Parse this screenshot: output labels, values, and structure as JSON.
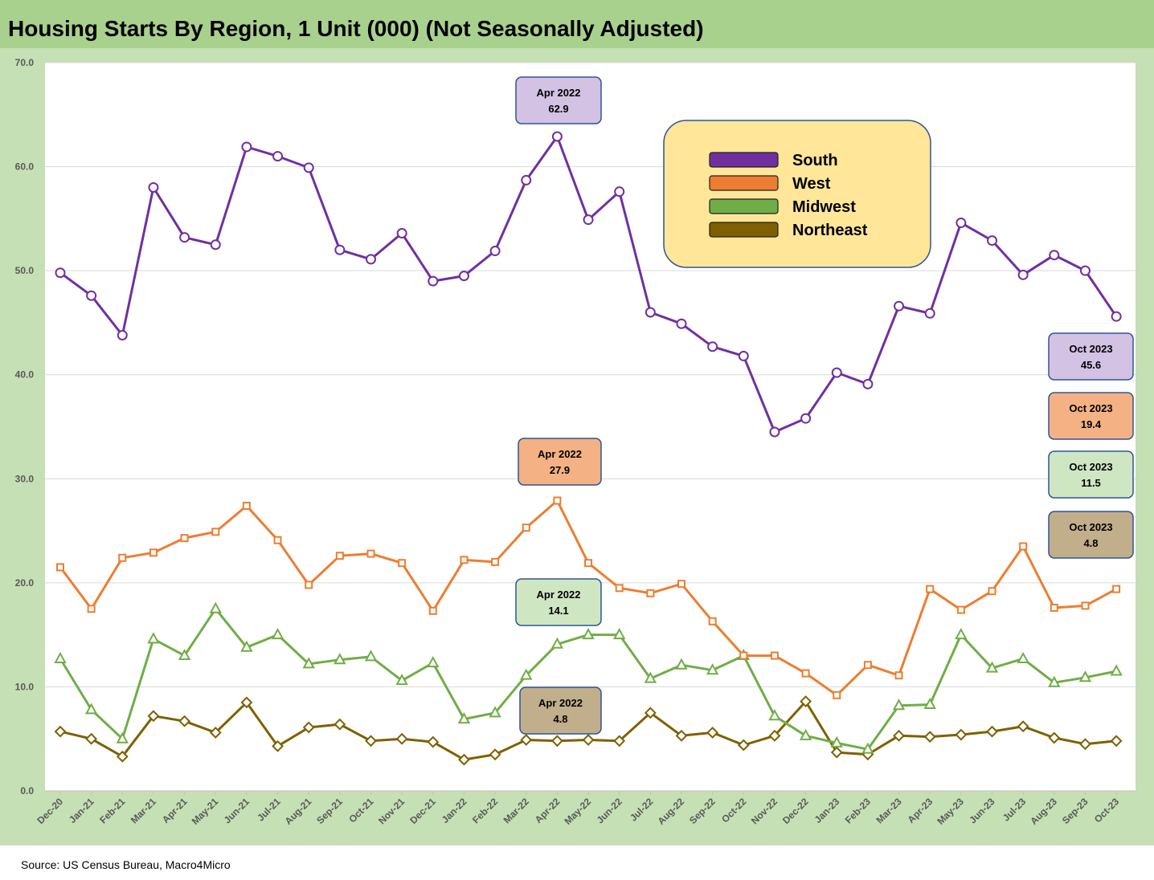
{
  "title": "Housing Starts By Region, 1 Unit (000) (Not Seasonally Adjusted)",
  "source": "Source: US Census Bureau, Macro4Micro",
  "chart_data": {
    "type": "line",
    "title": "Housing Starts By Region, 1 Unit (000) (Not Seasonally Adjusted)",
    "xlabel": "",
    "ylabel": "",
    "ylim": [
      0,
      70
    ],
    "yticks": [
      "0.0",
      "10.0",
      "20.0",
      "30.0",
      "40.0",
      "50.0",
      "60.0",
      "70.0"
    ],
    "grid": true,
    "legend_position": "top-right",
    "categories": [
      "Dec-20",
      "Jan-21",
      "Feb-21",
      "Mar-21",
      "Apr-21",
      "May-21",
      "Jun-21",
      "Jul-21",
      "Aug-21",
      "Sep-21",
      "Oct-21",
      "Nov-21",
      "Dec-21",
      "Jan-22",
      "Feb-22",
      "Mar-22",
      "Apr-22",
      "May-22",
      "Jun-22",
      "Jul-22",
      "Aug-22",
      "Sep-22",
      "Oct-22",
      "Nov-22",
      "Dec-22",
      "Jan-23",
      "Feb-23",
      "Mar-23",
      "Apr-23",
      "May-23",
      "Jun-23",
      "Jul-23",
      "Aug-23",
      "Sep-23",
      "Oct-23"
    ],
    "series": [
      {
        "name": "South",
        "color": "#7030a0",
        "marker": "circle",
        "values": [
          49.8,
          47.6,
          43.8,
          58.0,
          53.2,
          52.5,
          61.9,
          61.0,
          59.9,
          52.0,
          51.1,
          53.6,
          49.0,
          49.5,
          51.9,
          58.7,
          62.9,
          54.9,
          57.6,
          46.0,
          44.9,
          42.7,
          41.8,
          34.5,
          35.8,
          40.2,
          39.1,
          46.6,
          45.9,
          54.6,
          52.9,
          49.6,
          51.5,
          50.0,
          45.6
        ]
      },
      {
        "name": "West",
        "color": "#ed7d31",
        "marker": "square",
        "values": [
          21.5,
          17.5,
          22.4,
          22.9,
          24.3,
          24.9,
          27.4,
          24.1,
          19.8,
          22.6,
          22.8,
          21.9,
          17.3,
          22.2,
          22.0,
          25.3,
          27.9,
          21.9,
          19.5,
          19.0,
          19.9,
          16.3,
          13.0,
          13.0,
          11.3,
          9.2,
          12.1,
          11.1,
          19.4,
          17.4,
          19.2,
          23.5,
          17.6,
          17.8,
          19.4
        ]
      },
      {
        "name": "Midwest",
        "color": "#70ad47",
        "marker": "triangle",
        "values": [
          12.7,
          7.8,
          5.0,
          14.6,
          13.0,
          17.5,
          13.8,
          15.0,
          12.2,
          12.6,
          12.9,
          10.6,
          12.3,
          6.9,
          7.5,
          11.1,
          14.1,
          15.0,
          15.0,
          10.8,
          12.1,
          11.6,
          13.0,
          7.2,
          5.3,
          4.6,
          4.0,
          8.2,
          8.3,
          15.0,
          11.8,
          12.7,
          10.4,
          10.9,
          11.5
        ]
      },
      {
        "name": "Northeast",
        "color": "#7f6000",
        "marker": "diamond",
        "values": [
          5.7,
          5.0,
          3.3,
          7.2,
          6.7,
          5.6,
          8.5,
          4.3,
          6.1,
          6.4,
          4.8,
          5.0,
          4.7,
          3.0,
          3.5,
          4.9,
          4.8,
          4.9,
          4.8,
          7.5,
          5.3,
          5.6,
          4.4,
          5.3,
          8.6,
          3.7,
          3.5,
          5.3,
          5.2,
          5.4,
          5.7,
          6.2,
          5.1,
          4.5,
          4.8
        ]
      }
    ],
    "callouts": [
      {
        "series": "South",
        "period": "Apr 2022",
        "value": "62.9",
        "fill": "#d3c2e3"
      },
      {
        "series": "West",
        "period": "Apr 2022",
        "value": "27.9",
        "fill": "#f4b183"
      },
      {
        "series": "Midwest",
        "period": "Apr 2022",
        "value": "14.1",
        "fill": "#cfe6c3"
      },
      {
        "series": "Northeast",
        "period": "Apr 2022",
        "value": "4.8",
        "fill": "#c1ae8a"
      },
      {
        "series": "South",
        "period": "Oct 2023",
        "value": "45.6",
        "fill": "#d3c2e3"
      },
      {
        "series": "West",
        "period": "Oct 2023",
        "value": "19.4",
        "fill": "#f4b183"
      },
      {
        "series": "Midwest",
        "period": "Oct 2023",
        "value": "11.5",
        "fill": "#cfe6c3"
      },
      {
        "series": "Northeast",
        "period": "Oct 2023",
        "value": "4.8",
        "fill": "#c1ae8a"
      }
    ],
    "legend_fill": "#ffe699"
  }
}
